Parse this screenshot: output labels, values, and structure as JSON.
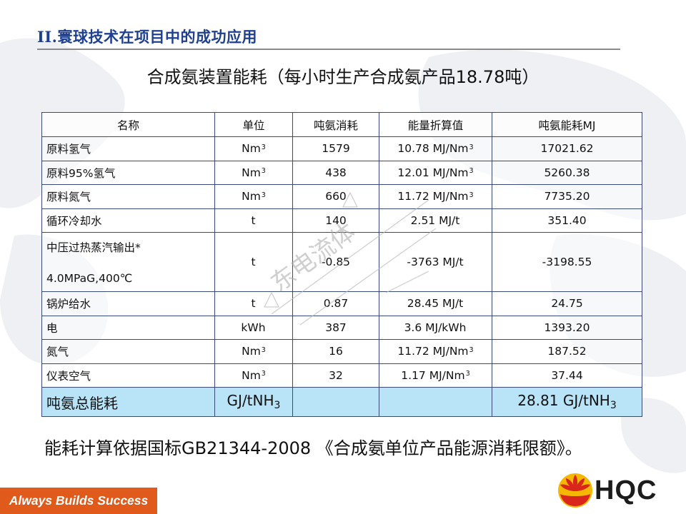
{
  "slide": {
    "title": "II.寰球技术在项目中的成功应用",
    "subtitle": "合成氨装置能耗（每小时生产合成氨产品18.78吨）",
    "footnote": "能耗计算依据国标GB21344-2008 《合成氨单位产品能源消耗限额》。",
    "slogan": "Always Builds Success",
    "logo_text": "HQC",
    "watermark_text": "东电流体"
  },
  "table": {
    "headers": [
      "名称",
      "单位",
      "吨氨消耗",
      "能量折算值",
      "吨氨能耗MJ"
    ],
    "rows": [
      {
        "name": "原料氢气",
        "unit": "Nm",
        "unit_sup": "3",
        "consumption": "1579",
        "factor": "10.78 MJ/Nm",
        "factor_sup": "3",
        "energy": "17021.62"
      },
      {
        "name": "原料95%氢气",
        "unit": "Nm",
        "unit_sup": "3",
        "consumption": "438",
        "factor": "12.01 MJ/Nm",
        "factor_sup": "3",
        "energy": "5260.38"
      },
      {
        "name": "原料氮气",
        "unit": "Nm",
        "unit_sup": "3",
        "consumption": "660",
        "factor": "11.72 MJ/Nm",
        "factor_sup": "3",
        "energy": "7735.20"
      },
      {
        "name": "循环冷却水",
        "unit": "t",
        "unit_sup": "",
        "consumption": "140",
        "factor": "2.51 MJ/t",
        "factor_sup": "",
        "energy": "351.40"
      },
      {
        "name": "中压过热蒸汽输出*",
        "name_line2": "4.0MPaG,400℃",
        "unit": "t",
        "unit_sup": "",
        "consumption": "-0.85",
        "factor": "-3763 MJ/t",
        "factor_sup": "",
        "energy": "-3198.55"
      },
      {
        "name": "锅炉给水",
        "unit": "t",
        "unit_sup": "",
        "consumption": "0.87",
        "factor": "28.45 MJ/t",
        "factor_sup": "",
        "energy": "24.75"
      },
      {
        "name": "电",
        "unit": "kWh",
        "unit_sup": "",
        "consumption": "387",
        "factor": "3.6 MJ/kWh",
        "factor_sup": "",
        "energy": "1393.20"
      },
      {
        "name": "氮气",
        "unit": "Nm",
        "unit_sup": "3",
        "consumption": "16",
        "factor": "11.72 MJ/Nm",
        "factor_sup": "3",
        "energy": "187.52"
      },
      {
        "name": "仪表空气",
        "unit": "Nm",
        "unit_sup": "3",
        "consumption": "32",
        "factor": "1.17 MJ/Nm",
        "factor_sup": "3",
        "energy": "37.44"
      }
    ],
    "total": {
      "name": "吨氨总能耗",
      "unit": "GJ/tNH",
      "unit_sub": "3",
      "consumption": "",
      "factor": "",
      "energy": "28.81 GJ/tNH",
      "energy_sub": "3"
    }
  },
  "colors": {
    "title": "#1f3f8f",
    "total_row_bg": "#b9e3f7",
    "slogan_bg": "#e05a1b",
    "logo_red": "#d9261c",
    "logo_yellow": "#f5b800",
    "table_border": "#3c4a7a"
  }
}
